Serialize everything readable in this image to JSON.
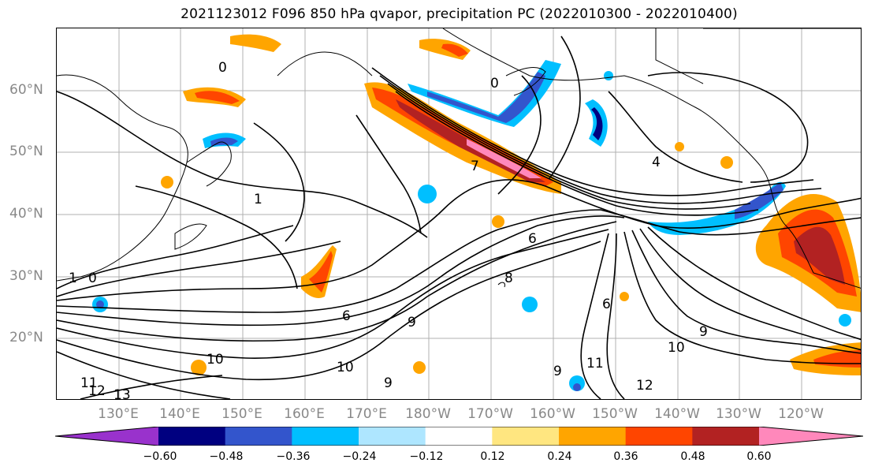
{
  "title": "2021123012 F096 850 hPa qvapor, precipitation PC (2022010300 - 2022010400)",
  "lat_labels": [
    "60°N",
    "50°N",
    "40°N",
    "30°N",
    "20°N"
  ],
  "lon_labels": [
    "130°E",
    "140°E",
    "150°E",
    "160°E",
    "170°E",
    "180°W",
    "170°W",
    "160°W",
    "150°W",
    "140°W",
    "130°W",
    "120°W"
  ],
  "contour_labels": [
    "0",
    "0",
    "1",
    "1",
    "0",
    "6",
    "9",
    "6",
    "8",
    "9",
    "10",
    "10",
    "11",
    "12",
    "13",
    "10",
    "9",
    "9",
    "6",
    "12",
    "11",
    "7",
    "4"
  ],
  "colorbar": {
    "ticks": [
      "−0.60",
      "−0.48",
      "−0.36",
      "−0.24",
      "−0.12",
      "0.12",
      "0.24",
      "0.36",
      "0.48",
      "0.60"
    ],
    "colors": [
      "#9932cc",
      "#000080",
      "#3355cc",
      "#00bfff",
      "#aee6ff",
      "#ffffff",
      "#ffe680",
      "#ffa500",
      "#ff4500",
      "#b22222",
      "#ff88bb"
    ]
  }
}
